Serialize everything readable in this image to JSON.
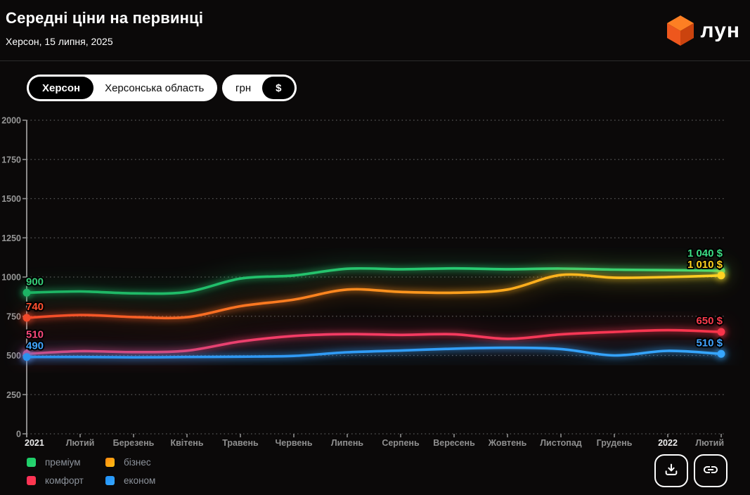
{
  "header": {
    "title": "Середні ціни на первинці",
    "subtitle": "Херсон, 15 липня, 2025",
    "logo_text": "лун"
  },
  "toggles": {
    "region": {
      "options": [
        "Херсон",
        "Херсонська область"
      ],
      "selected": "Херсон"
    },
    "currency": {
      "options": [
        "грн",
        "$"
      ],
      "selected": "$"
    }
  },
  "chart_data": {
    "type": "line",
    "title": "Середні ціни на первинці",
    "subtitle": "Херсон, 15 липня, 2025",
    "currency": "$",
    "categories": [
      "2021",
      "Лютий",
      "Березень",
      "Квітень",
      "Травень",
      "Червень",
      "Липень",
      "Серпень",
      "Вересень",
      "Жовтень",
      "Листопад",
      "Грудень",
      "2022",
      "Лютий"
    ],
    "y_ticks": [
      0,
      250,
      500,
      750,
      1000,
      1250,
      1500,
      1750,
      2000
    ],
    "ylim": [
      0,
      2000
    ],
    "grid": "horizontal-dotted",
    "legend_position": "bottom-left",
    "series": [
      {
        "name": "преміум",
        "values": [
          900,
          908,
          896,
          905,
          990,
          1010,
          1053,
          1050,
          1055,
          1050,
          1054,
          1047,
          1044,
          1040
        ],
        "start_label": "900",
        "end_label": "1 040 $",
        "gradient": [
          [
            0,
            "#1cb565"
          ],
          [
            1,
            "#2dd97b"
          ]
        ],
        "label_color_start": "#36cf79",
        "label_color_end": "#3bdf85"
      },
      {
        "name": "бізнес",
        "values": [
          740,
          758,
          745,
          744,
          814,
          856,
          920,
          905,
          900,
          920,
          1013,
          996,
          1000,
          1010
        ],
        "start_label": "740",
        "end_label": "1 010 $",
        "gradient": [
          [
            0,
            "#f2492a"
          ],
          [
            0.35,
            "#fc7a20"
          ],
          [
            0.7,
            "#ffab1c"
          ],
          [
            1,
            "#ffd322"
          ]
        ],
        "label_color_start": "#ff5030",
        "label_color_end": "#ffd21e"
      },
      {
        "name": "комфорт",
        "values": [
          510,
          527,
          521,
          530,
          589,
          624,
          636,
          631,
          635,
          606,
          634,
          650,
          661,
          650
        ],
        "start_label": "510",
        "end_label": "650 $",
        "gradient": [
          [
            0,
            "#ed3f74"
          ],
          [
            0.6,
            "#f53a5f"
          ],
          [
            1,
            "#f8344a"
          ]
        ],
        "label_color_start": "#f8487b",
        "label_color_end": "#fb3b4d"
      },
      {
        "name": "економ",
        "values": [
          490,
          490,
          488,
          490,
          492,
          497,
          520,
          531,
          543,
          549,
          541,
          500,
          529,
          510
        ],
        "start_label": "490",
        "end_label": "510 $",
        "gradient": [
          [
            0,
            "#2b92ef"
          ],
          [
            1,
            "#36a6fe"
          ]
        ],
        "label_color_start": "#41a4ff",
        "label_color_end": "#41a4ff"
      }
    ],
    "legend": [
      {
        "label": "преміум",
        "color": "#19c763",
        "color2": "#2bd974"
      },
      {
        "label": "бізнес",
        "color": "#ff8812",
        "color2": "#ffc012"
      },
      {
        "label": "комфорт",
        "color": "#fb2d5c",
        "color2": "#ff3b49"
      },
      {
        "label": "економ",
        "color": "#1e8ff7",
        "color2": "#38a8ff"
      }
    ]
  },
  "footer": {
    "buttons": [
      {
        "icon": "download-icon"
      },
      {
        "icon": "link-icon"
      }
    ]
  }
}
